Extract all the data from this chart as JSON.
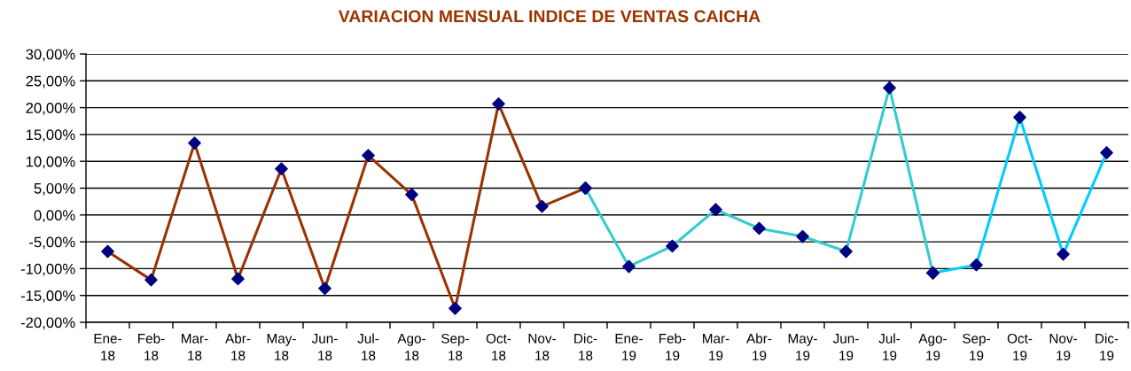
{
  "chart_data": {
    "type": "line",
    "title": "VARIACION MENSUAL INDICE DE VENTAS CAICHA",
    "categories": [
      "Ene-\n18",
      "Feb-\n18",
      "Mar-\n18",
      "Abr-\n18",
      "May-\n18",
      "Jun-\n18",
      "Jul-\n18",
      "Ago-\n18",
      "Sep-\n18",
      "Oct-\n18",
      "Nov-\n18",
      "Dic-\n18",
      "Ene-\n19",
      "Feb-\n19",
      "Mar-\n19",
      "Abr-\n19",
      "May-\n19",
      "Jun-\n19",
      "Jul-\n19",
      "Ago-\n19",
      "Sep-\n19",
      "Oct-\n19",
      "Nov-\n19",
      "Dic-\n19"
    ],
    "series": [
      {
        "color": "#993300",
        "values": [
          -6.8,
          -12.1,
          13.4,
          -11.9,
          8.6,
          -13.7,
          11.1,
          3.8,
          -17.4,
          20.7,
          1.6,
          5.0,
          null,
          null,
          null,
          null,
          null,
          null,
          null,
          null,
          null,
          null,
          null,
          null
        ],
        "colors": [
          "#000080",
          "#000080",
          "#000080",
          "#000080",
          "#000080",
          "#000080",
          "#000080",
          "#000080",
          "#000080",
          "#000080",
          "#000080",
          "#000080",
          null,
          null,
          null,
          null,
          null,
          null,
          null,
          null,
          null,
          null,
          null,
          null
        ]
      },
      {
        "color": "#33cccc",
        "values": [
          null,
          null,
          null,
          null,
          null,
          null,
          null,
          null,
          null,
          null,
          null,
          5.0,
          -9.6,
          -5.8,
          1.0,
          -2.5,
          -4.0,
          -6.8,
          23.7,
          -10.8,
          null,
          null,
          null,
          null
        ],
        "colors": [
          null,
          null,
          null,
          null,
          null,
          null,
          null,
          null,
          null,
          null,
          null,
          "#000080",
          "#000080",
          "#000080",
          "#000080",
          "#000080",
          "#000080",
          "#000080",
          "#000080",
          "#000080",
          null,
          null,
          null,
          null
        ]
      },
      {
        "color": "#00ccff",
        "values": [
          null,
          null,
          null,
          null,
          null,
          null,
          null,
          null,
          null,
          null,
          null,
          null,
          null,
          null,
          null,
          null,
          null,
          null,
          null,
          -10.8,
          -9.3,
          18.2,
          -7.3,
          11.6
        ],
        "colors": [
          null,
          null,
          null,
          null,
          null,
          null,
          null,
          null,
          null,
          null,
          null,
          null,
          null,
          null,
          null,
          null,
          null,
          null,
          null,
          "#000080",
          "#000080",
          "#000080",
          "#000080",
          "#000080"
        ]
      }
    ],
    "marker": "diamond",
    "line_style": "solid",
    "grid": "y",
    "ylim": [
      -20,
      30
    ],
    "yticks": [
      {
        "value": -20,
        "label": "-20,00%"
      },
      {
        "value": -15,
        "label": "-15,00%"
      },
      {
        "value": -10,
        "label": "-10,00%"
      },
      {
        "value": -5,
        "label": "-5,00%"
      },
      {
        "value": 0,
        "label": "0,00%"
      },
      {
        "value": 5,
        "label": "5,00%"
      },
      {
        "value": 10,
        "label": "10,00%"
      },
      {
        "value": 15,
        "label": "15,00%"
      },
      {
        "value": 20,
        "label": "20,00%"
      },
      {
        "value": 25,
        "label": "25,00%"
      },
      {
        "value": 30,
        "label": "30,00%"
      }
    ]
  }
}
